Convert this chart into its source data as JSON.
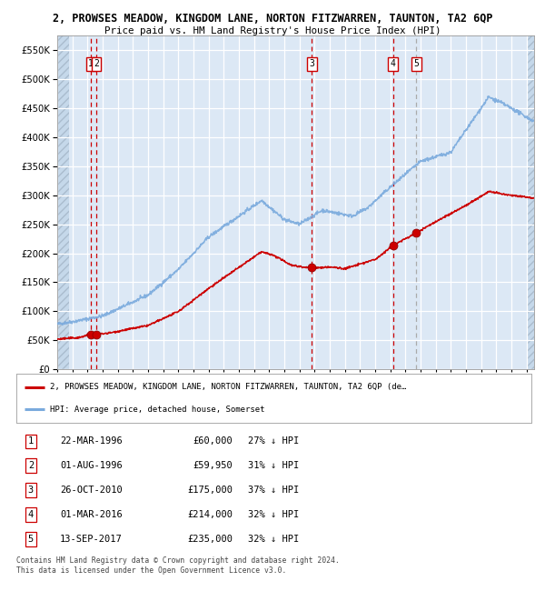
{
  "title": "2, PROWSES MEADOW, KINGDOM LANE, NORTON FITZWARREN, TAUNTON, TA2 6QP",
  "subtitle": "Price paid vs. HM Land Registry's House Price Index (HPI)",
  "ylim": [
    0,
    575000
  ],
  "yticks": [
    0,
    50000,
    100000,
    150000,
    200000,
    250000,
    300000,
    350000,
    400000,
    450000,
    500000,
    550000
  ],
  "xlim_start": 1994.0,
  "xlim_end": 2025.5,
  "bg_color": "#dce8f5",
  "grid_color": "#ffffff",
  "sale_dates": [
    1996.23,
    1996.58,
    2010.82,
    2016.17,
    2017.71
  ],
  "sale_prices": [
    60000,
    59950,
    175000,
    214000,
    235000
  ],
  "sale_labels": [
    "1",
    "2",
    "3",
    "4",
    "5"
  ],
  "sale_label_color": "#cc0000",
  "sale_marker_color": "#cc0000",
  "legend_line1": "2, PROWSES MEADOW, KINGDOM LANE, NORTON FITZWARREN, TAUNTON, TA2 6QP (de…",
  "legend_line2": "HPI: Average price, detached house, Somerset",
  "table_rows": [
    [
      "1",
      "22-MAR-1996",
      "£60,000",
      "27% ↓ HPI"
    ],
    [
      "2",
      "01-AUG-1996",
      "£59,950",
      "31% ↓ HPI"
    ],
    [
      "3",
      "26-OCT-2010",
      "£175,000",
      "37% ↓ HPI"
    ],
    [
      "4",
      "01-MAR-2016",
      "£214,000",
      "32% ↓ HPI"
    ],
    [
      "5",
      "13-SEP-2017",
      "£235,000",
      "32% ↓ HPI"
    ]
  ],
  "footer": "Contains HM Land Registry data © Crown copyright and database right 2024.\nThis data is licensed under the Open Government Licence v3.0.",
  "red_line_color": "#cc0000",
  "blue_line_color": "#7aaadd"
}
